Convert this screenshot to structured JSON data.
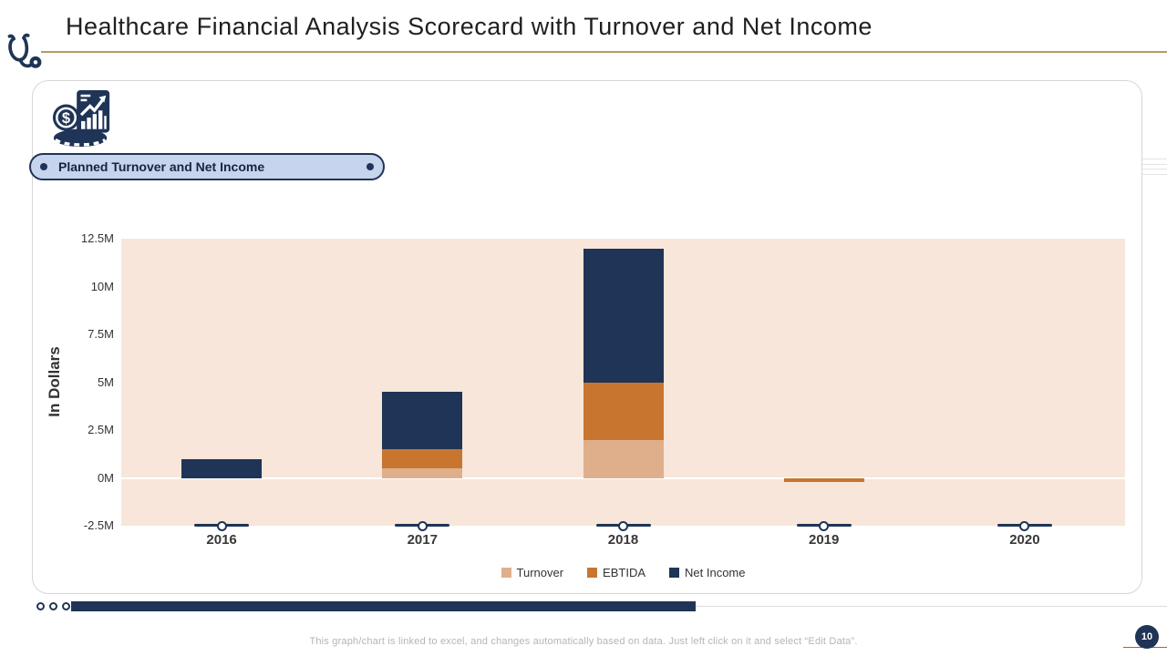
{
  "slide": {
    "title": "Healthcare Financial Analysis Scorecard with Turnover and Net Income",
    "badge_label": "Planned Turnover and Net Income",
    "footer_note": "This graph/chart is linked to excel, and changes automatically based on data. Just left click on it and select “Edit Data”.",
    "page_number": "10"
  },
  "colors": {
    "navy": "#1F3456",
    "orange": "#C8762F",
    "tan": "#DFAF8C",
    "plot_background": "#F7E6D9",
    "badge_background": "#C7D4EE",
    "gold_divider": "#B49A68",
    "accent_orange_line": "#C55A11"
  },
  "chart_data": {
    "type": "bar",
    "stacked": true,
    "title": "",
    "categories": [
      "2016",
      "2017",
      "2018",
      "2019",
      "2020"
    ],
    "series": [
      {
        "name": "Turnover",
        "color": "#DFAF8C",
        "values_millions": [
          0,
          0.5,
          2,
          0,
          0
        ]
      },
      {
        "name": "EBTIDA",
        "color": "#C8762F",
        "values_millions": [
          0,
          1,
          3,
          -0.2,
          0
        ]
      },
      {
        "name": "Net Income",
        "color": "#1F3456",
        "values_millions": [
          1,
          3,
          7,
          0,
          0
        ]
      }
    ],
    "xlabel": "",
    "ylabel": "In Dollars",
    "unit": "M (dollars, millions)",
    "ylim_millions": [
      -2.5,
      12.5
    ],
    "y_ticks_millions": [
      12.5,
      10,
      7.5,
      5,
      2.5,
      0,
      -2.5
    ],
    "y_tick_labels": [
      "12.5M",
      "10M",
      "7.5M",
      "5M",
      "2.5M",
      "0M",
      "-2.5M"
    ],
    "grid": "zero-line-only",
    "legend_position": "bottom"
  }
}
